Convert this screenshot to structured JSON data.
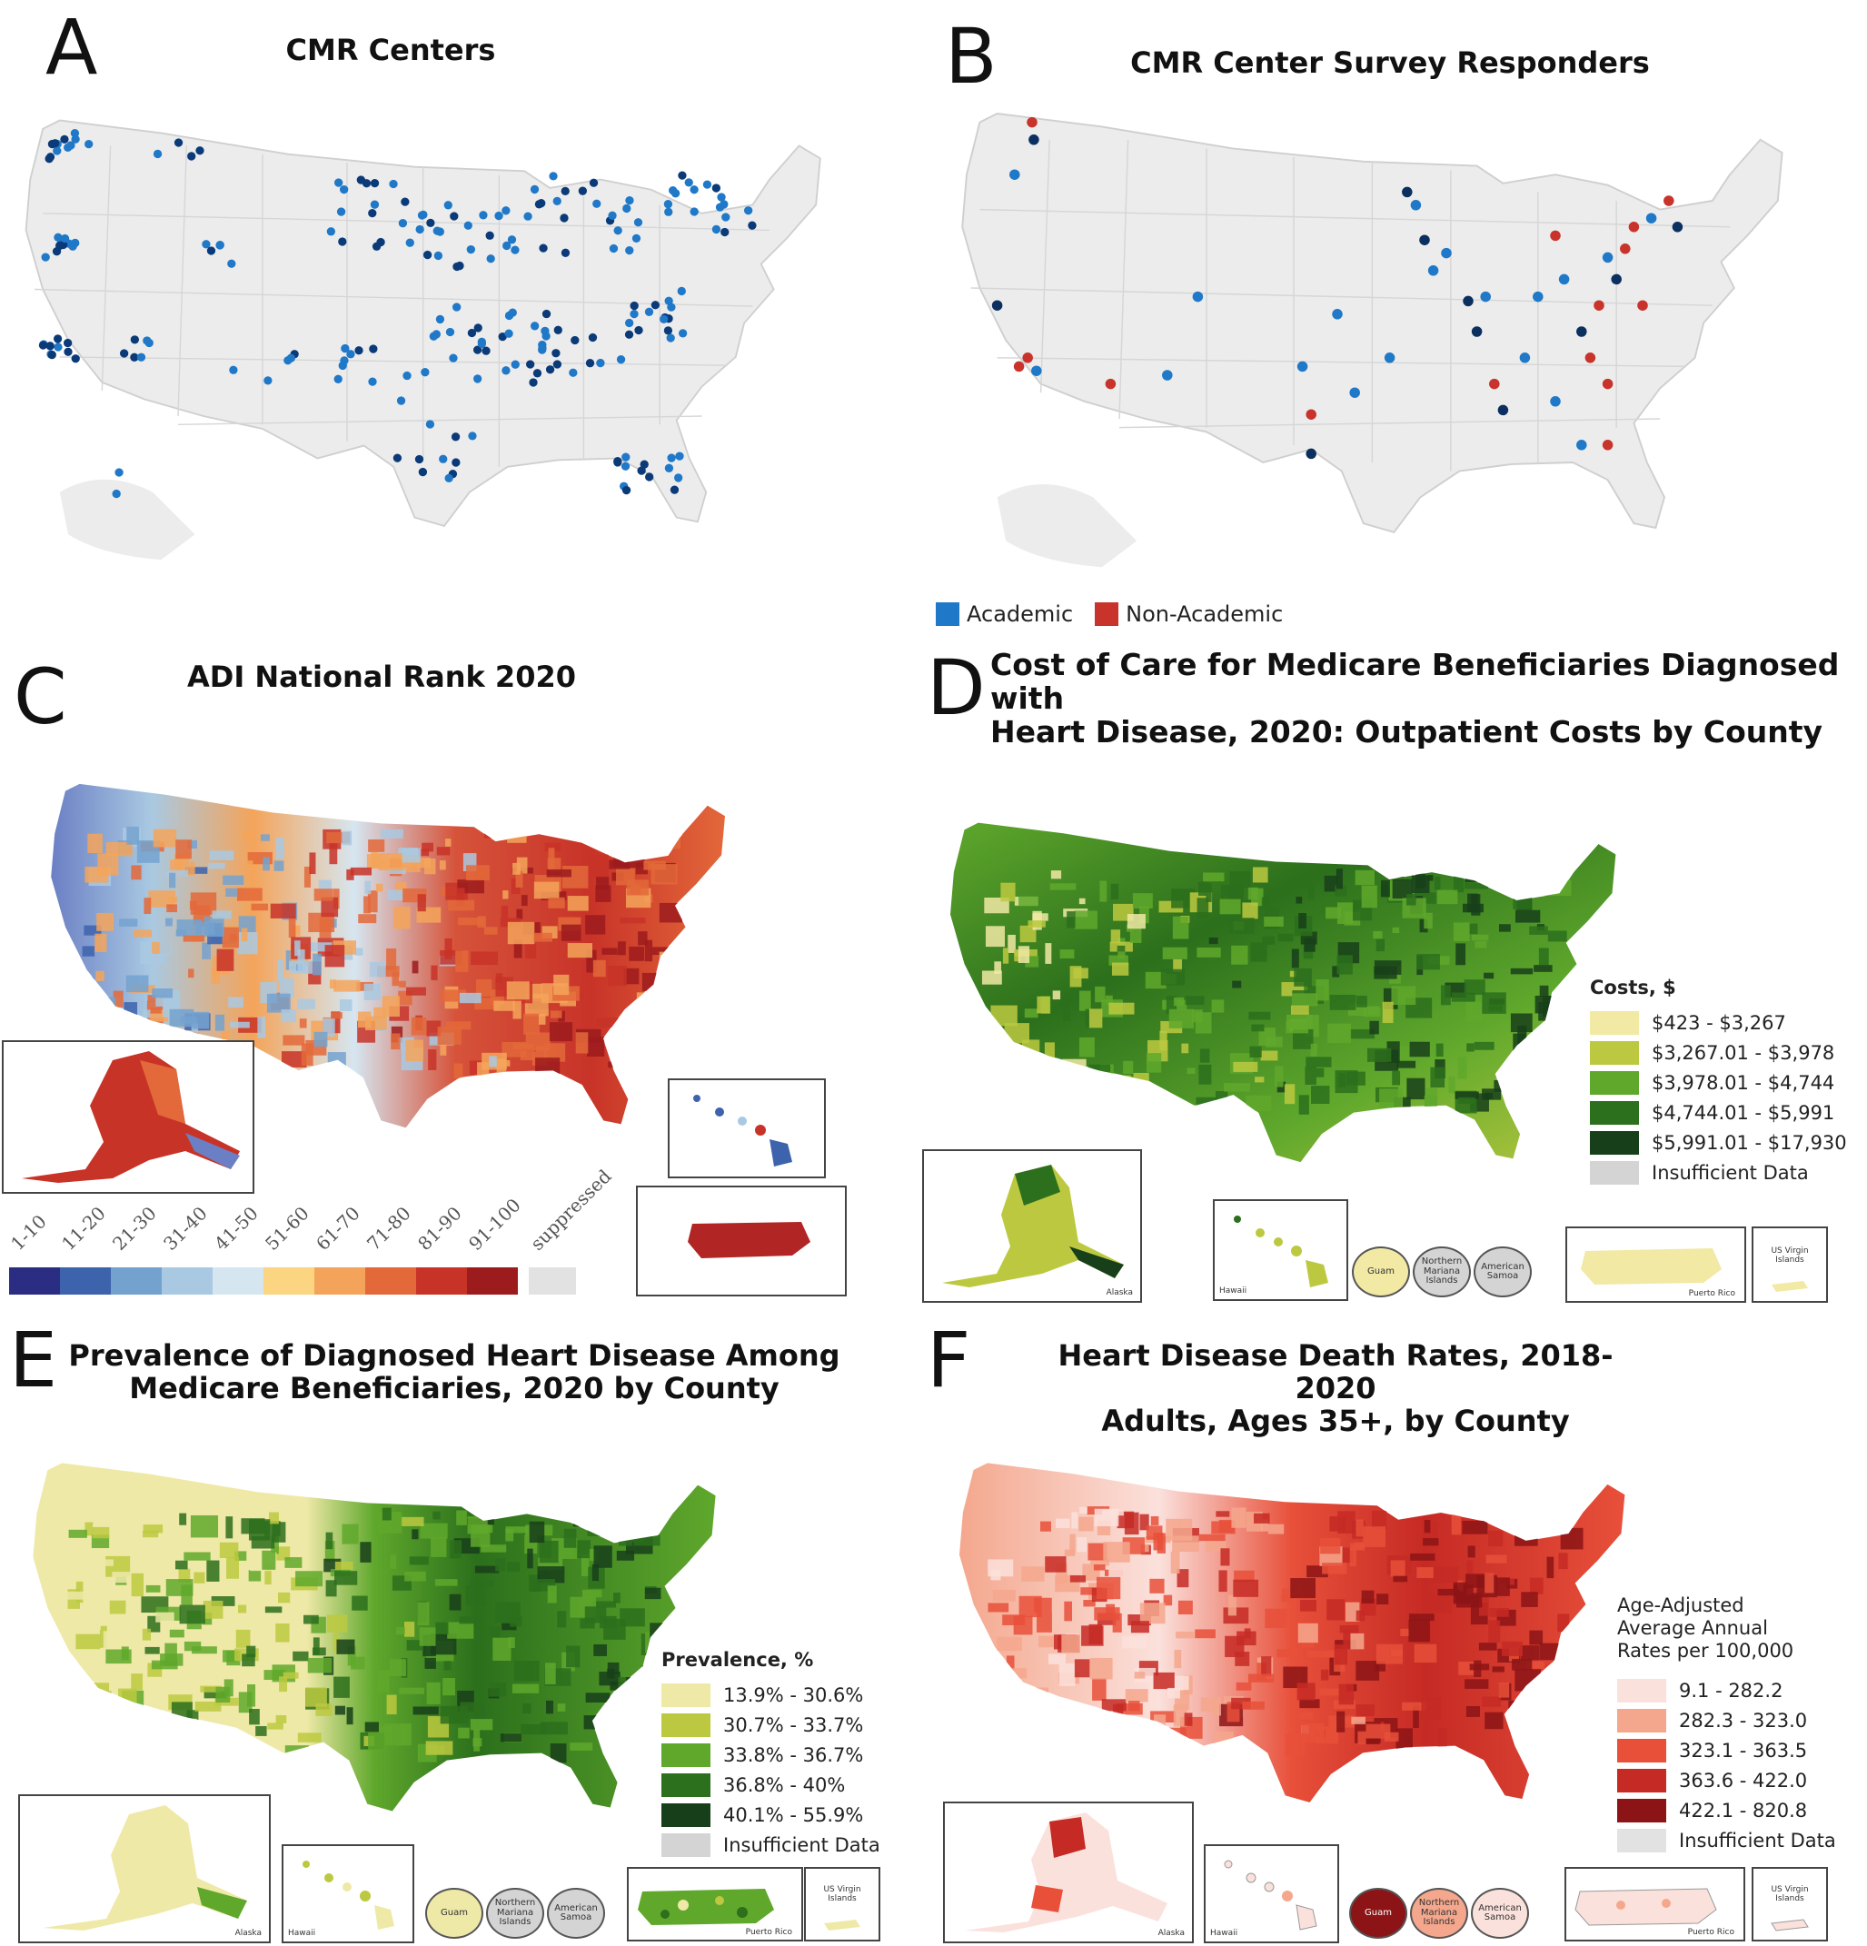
{
  "panels": {
    "a": {
      "letter": "A",
      "title": "CMR Centers"
    },
    "b": {
      "letter": "B",
      "title": "CMR Center Survey Responders",
      "legend": [
        {
          "label": "Academic",
          "color": "#1f78c8"
        },
        {
          "label": "Non-Academic",
          "color": "#c8332b"
        }
      ]
    },
    "c": {
      "letter": "C",
      "title": "ADI National Rank 2020",
      "legend": [
        {
          "label": "1-10",
          "color": "#2b2d83"
        },
        {
          "label": "11-20",
          "color": "#3d63ad"
        },
        {
          "label": "21-30",
          "color": "#74a2cf"
        },
        {
          "label": "31-40",
          "color": "#a9c9e2"
        },
        {
          "label": "41-50",
          "color": "#d6e6f0"
        },
        {
          "label": "51-60",
          "color": "#fbd582"
        },
        {
          "label": "61-70",
          "color": "#f4a45a"
        },
        {
          "label": "71-80",
          "color": "#e3683a"
        },
        {
          "label": "81-90",
          "color": "#c83328"
        },
        {
          "label": "91-100",
          "color": "#9c1b1d"
        },
        {
          "label": "suppressed",
          "color": "#e2e2e2"
        }
      ]
    },
    "d": {
      "letter": "D",
      "title_line1": "Cost of Care for Medicare Beneficiaries Diagnosed with",
      "title_line2": "Heart Disease, 2020: Outpatient Costs by County",
      "legend_title": "Costs, $",
      "legend": [
        {
          "label": "$423 - $3,267",
          "color": "#f1e9a4"
        },
        {
          "label": "$3,267.01 - $3,978",
          "color": "#bcc940"
        },
        {
          "label": "$3,978.01 - $4,744",
          "color": "#5fa82c"
        },
        {
          "label": "$4,744.01 - $5,991",
          "color": "#2c6f1c"
        },
        {
          "label": "$5,991.01 - $17,930",
          "color": "#17401a"
        },
        {
          "label": "Insufficient Data",
          "color": "#d4d4d4"
        }
      ],
      "insets": {
        "alaska": "Alaska",
        "hawaii": "Hawaii",
        "guam": "Guam",
        "nmi": "Northern Mariana Islands",
        "samoa": "American Samoa",
        "pr": "Puerto Rico",
        "vi": "US Virgin Islands"
      }
    },
    "e": {
      "letter": "E",
      "title_line1": "Prevalence of Diagnosed Heart Disease Among",
      "title_line2": "Medicare Beneficiaries, 2020 by County",
      "legend_title": "Prevalence, %",
      "legend": [
        {
          "label": "13.9% - 30.6%",
          "color": "#efe9a8"
        },
        {
          "label": "30.7% - 33.7%",
          "color": "#bcc940"
        },
        {
          "label": "33.8% - 36.7%",
          "color": "#5fa82c"
        },
        {
          "label": "36.8% - 40%",
          "color": "#2c6f1c"
        },
        {
          "label": "40.1% - 55.9%",
          "color": "#17401a"
        },
        {
          "label": "Insufficient Data",
          "color": "#d4d4d4"
        }
      ],
      "insets": {
        "alaska": "Alaska",
        "hawaii": "Hawaii",
        "guam": "Guam",
        "nmi": "Northern Mariana Islands",
        "samoa": "American Samoa",
        "pr": "Puerto Rico",
        "vi": "US Virgin Islands"
      }
    },
    "f": {
      "letter": "F",
      "title_line1": "Heart Disease Death Rates, 2018-2020",
      "title_line2": "Adults, Ages 35+, by County",
      "legend_title_1": "Age-Adjusted",
      "legend_title_2": "Average Annual",
      "legend_title_3": "Rates per 100,000",
      "legend": [
        {
          "label": "9.1 - 282.2",
          "color": "#fbe1dc"
        },
        {
          "label": "282.3 - 323.0",
          "color": "#f4a78d"
        },
        {
          "label": "323.1 - 363.5",
          "color": "#e8503a"
        },
        {
          "label": "363.6 - 422.0",
          "color": "#c62a24"
        },
        {
          "label": "422.1 - 820.8",
          "color": "#8c1416"
        },
        {
          "label": "Insufficient Data",
          "color": "#e2e2e2"
        }
      ],
      "insets": {
        "alaska": "Alaska",
        "hawaii": "Hawaii",
        "guam": "Guam",
        "nmi": "Northern Mariana Islands",
        "samoa": "American Samoa",
        "pr": "Puerto Rico",
        "vi": "US Virgin Islands"
      }
    }
  }
}
